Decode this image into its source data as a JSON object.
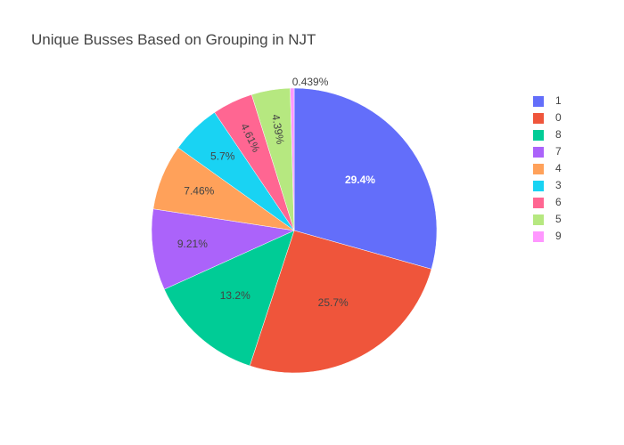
{
  "chart_data": {
    "type": "pie",
    "title": "Unique Busses Based on Grouping in NJT",
    "slices": [
      {
        "label": "1",
        "percent": 29.4,
        "percent_label": "29.4%",
        "color": "#636efa"
      },
      {
        "label": "0",
        "percent": 25.7,
        "percent_label": "25.7%",
        "color": "#ef553b"
      },
      {
        "label": "8",
        "percent": 13.2,
        "percent_label": "13.2%",
        "color": "#00cc96"
      },
      {
        "label": "7",
        "percent": 9.21,
        "percent_label": "9.21%",
        "color": "#ab63fa"
      },
      {
        "label": "4",
        "percent": 7.46,
        "percent_label": "7.46%",
        "color": "#ffa15a"
      },
      {
        "label": "3",
        "percent": 5.7,
        "percent_label": "5.7%",
        "color": "#19d3f3"
      },
      {
        "label": "6",
        "percent": 4.61,
        "percent_label": "4.61%",
        "color": "#ff6692"
      },
      {
        "label": "5",
        "percent": 4.39,
        "percent_label": "4.39%",
        "color": "#b6e880"
      },
      {
        "label": "9",
        "percent": 0.439,
        "percent_label": "0.439%",
        "color": "#ff97ff"
      }
    ],
    "legend": {
      "placement": "top-right",
      "order": [
        "1",
        "0",
        "8",
        "7",
        "4",
        "3",
        "6",
        "5",
        "9"
      ]
    },
    "direction": "clockwise",
    "start": "top"
  }
}
